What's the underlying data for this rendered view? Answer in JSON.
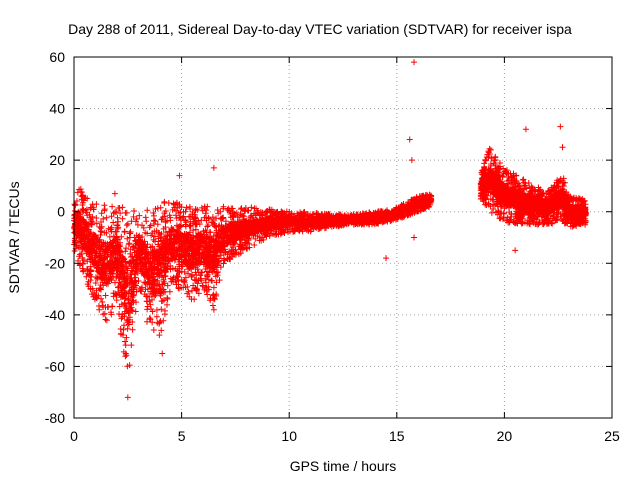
{
  "chart_data": {
    "type": "scatter",
    "title": "Day 288 of 2011, Sidereal Day-to-day VTEC variation (SDTVAR) for receiver ispa",
    "xlabel": "GPS time / hours",
    "ylabel": "SDTVAR / TECUs",
    "xlim": [
      0,
      25
    ],
    "ylim": [
      -80,
      60
    ],
    "xticks": [
      0,
      5,
      10,
      15,
      20,
      25
    ],
    "yticks": [
      -80,
      -60,
      -40,
      -20,
      0,
      20,
      40,
      60
    ],
    "xtick_labels": [
      "0",
      "5",
      "10",
      "15",
      "20",
      "25"
    ],
    "ytick_labels": [
      "-80",
      "-60",
      "-40",
      "-20",
      "0",
      "20",
      "40",
      "60"
    ],
    "grid": true,
    "marker": "+",
    "color": "#ff0000",
    "series": [
      {
        "name": "SDTVAR",
        "description_band": "dense cloud of points; band centre and spread",
        "envelope_upper": {
          "x": [
            0,
            0.2,
            1,
            2,
            3,
            4,
            4.5,
            5,
            6,
            7,
            8,
            9,
            10,
            11,
            12,
            13,
            14,
            14.8,
            15.5,
            16,
            16.6
          ],
          "y": [
            5,
            10,
            3,
            3,
            0,
            3,
            5,
            3,
            2,
            2,
            2,
            1,
            0,
            0,
            -1,
            -1,
            0,
            1,
            4,
            6,
            7
          ]
        },
        "envelope_lower": {
          "x": [
            0,
            0.2,
            1,
            1.5,
            2,
            2.5,
            3,
            3.5,
            4,
            4.5,
            5,
            5.5,
            6,
            6.5,
            7,
            8,
            9,
            10,
            11,
            12,
            13,
            14,
            15,
            16,
            16.6
          ],
          "y": [
            -15,
            -20,
            -35,
            -45,
            -35,
            -70,
            -30,
            -48,
            -50,
            -30,
            -30,
            -35,
            -30,
            -37,
            -20,
            -15,
            -10,
            -8,
            -8,
            -6,
            -5,
            -5,
            -3,
            0,
            2
          ]
        },
        "second_segment_upper": {
          "x": [
            18.9,
            19.3,
            20,
            21,
            22,
            22.7,
            23,
            23.8
          ],
          "y": [
            15,
            25,
            17,
            12,
            8,
            15,
            6,
            5
          ]
        },
        "second_segment_lower": {
          "x": [
            18.9,
            19.3,
            20,
            21,
            22,
            22.7,
            23,
            23.8
          ],
          "y": [
            5,
            0,
            -4,
            -5,
            -5,
            -4,
            -6,
            -5
          ]
        },
        "outliers": [
          {
            "x": 15.8,
            "y": 58
          },
          {
            "x": 15.6,
            "y": 28
          },
          {
            "x": 15.7,
            "y": 20
          },
          {
            "x": 15.8,
            "y": -10
          },
          {
            "x": 14.5,
            "y": -18
          },
          {
            "x": 22.6,
            "y": 33
          },
          {
            "x": 22.7,
            "y": 25
          },
          {
            "x": 21.0,
            "y": 32
          },
          {
            "x": 20.5,
            "y": -15
          },
          {
            "x": 6.5,
            "y": 17
          },
          {
            "x": 6.5,
            "y": -38
          },
          {
            "x": 1.9,
            "y": 7
          },
          {
            "x": 4.9,
            "y": 14
          },
          {
            "x": 2.5,
            "y": -72
          },
          {
            "x": 4.1,
            "y": -55
          }
        ]
      }
    ]
  }
}
